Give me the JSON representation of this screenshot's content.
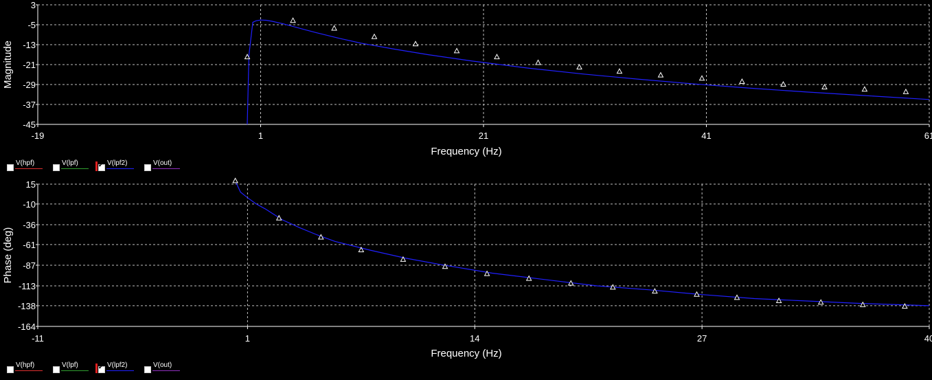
{
  "chart_data": [
    {
      "type": "line",
      "xlabel": "Frequency (Hz)",
      "ylabel": "Magnitude",
      "xlim": [
        -19,
        61
      ],
      "ylim": [
        -45,
        3
      ],
      "x_ticks": [
        "-19",
        "1",
        "21",
        "41",
        "61"
      ],
      "y_ticks": [
        "3",
        "-5",
        "-13",
        "-21",
        "-29",
        "-37",
        "-45"
      ],
      "grid": true,
      "series": [
        {
          "name": "V(lpf2)",
          "color": "#2020ff",
          "x": [
            -0.2,
            -0.05,
            0.3,
            0.6,
            1.0,
            1.5,
            2.0,
            3.0,
            4.0,
            5.0,
            6.0,
            8.0,
            10.0,
            13.0,
            16.0,
            20.0,
            25.0,
            30.0,
            35.0,
            40.0,
            45.0,
            50.0,
            55.0,
            61.0
          ],
          "y": [
            -45,
            -17,
            -4,
            -3.4,
            -3.1,
            -3.2,
            -3.6,
            -4.6,
            -5.8,
            -7.0,
            -8.2,
            -10.4,
            -12.4,
            -14.8,
            -17.0,
            -19.6,
            -22.4,
            -24.8,
            -26.9,
            -28.8,
            -30.5,
            -32.0,
            -33.4,
            -35.0
          ],
          "markers_x": [
            -0.2,
            3.9,
            7.6,
            11.2,
            14.9,
            18.6,
            22.2,
            25.9,
            29.6,
            33.2,
            36.9,
            40.6,
            44.2,
            47.9,
            51.6,
            55.2,
            58.9
          ],
          "markers_y": [
            -18,
            -3.4,
            -6.5,
            -9.9,
            -12.8,
            -15.6,
            -18.0,
            -20.3,
            -22.1,
            -23.8,
            -25.3,
            -26.6,
            -27.9,
            -29.0,
            -30.1,
            -31.0,
            -32.0
          ]
        }
      ],
      "legend": [
        {
          "name": "V(hpf)",
          "color": "#e03030",
          "checked": false
        },
        {
          "name": "V(lpf)",
          "color": "#30a030",
          "checked": false
        },
        {
          "name": "V(lpf2)",
          "color": "#2020ff",
          "checked": true
        },
        {
          "name": "V(out)",
          "color": "#9030c0",
          "checked": false
        }
      ]
    },
    {
      "type": "line",
      "xlabel": "Frequency (Hz)",
      "ylabel": "Phase (deg)",
      "xlim": [
        -11,
        40
      ],
      "ylim": [
        -164,
        15
      ],
      "x_ticks": [
        "-11",
        "1",
        "14",
        "27",
        "40"
      ],
      "y_ticks": [
        "15",
        "-10",
        "-36",
        "-61",
        "-87",
        "-113",
        "-138",
        "-164"
      ],
      "grid": true,
      "series": [
        {
          "name": "V(lpf2)",
          "color": "#2020ff",
          "x": [
            0.3,
            0.6,
            1.0,
            1.5,
            2.0,
            3.0,
            4.0,
            5.0,
            6.0,
            8.0,
            10.0,
            12.0,
            15.0,
            18.0,
            21.0,
            24.0,
            27.0,
            30.0,
            33.0,
            36.0,
            40.0
          ],
          "y": [
            19,
            5,
            -2,
            -10,
            -16,
            -30,
            -40,
            -49,
            -57,
            -68,
            -78,
            -86,
            -97,
            -105,
            -113,
            -118,
            -124,
            -129,
            -132,
            -135,
            -138
          ],
          "markers_x": [
            0.3,
            2.8,
            5.2,
            7.5,
            9.9,
            12.3,
            14.7,
            17.1,
            19.5,
            21.9,
            24.3,
            26.7,
            29.0,
            31.4,
            33.8,
            36.2,
            38.6
          ],
          "markers_y": [
            19,
            -28,
            -52,
            -68,
            -80,
            -89,
            -98,
            -104,
            -110,
            -115,
            -120,
            -124,
            -128,
            -132,
            -134,
            -137,
            -139
          ]
        }
      ],
      "legend": [
        {
          "name": "V(hpf)",
          "color": "#e03030",
          "checked": false
        },
        {
          "name": "V(lpf)",
          "color": "#30a030",
          "checked": false
        },
        {
          "name": "V(lpf2)",
          "color": "#2020ff",
          "checked": true
        },
        {
          "name": "V(out)",
          "color": "#9030c0",
          "checked": false
        }
      ]
    }
  ]
}
